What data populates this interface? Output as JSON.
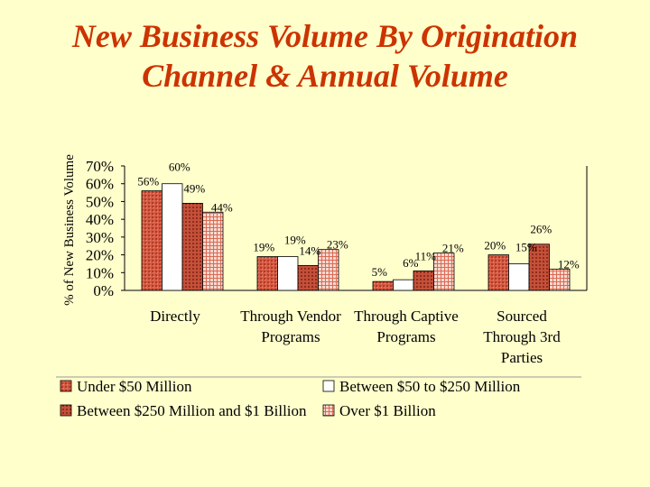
{
  "title": {
    "line1": "New Business Volume By Origination",
    "line2": "Channel & Annual Volume"
  },
  "chart_data": {
    "type": "bar",
    "title": "New Business Volume By Origination Channel & Annual Volume",
    "xlabel": "",
    "ylabel": "% of New Business Volume",
    "ylim": [
      0,
      70
    ],
    "yticks": [
      "0%",
      "10%",
      "20%",
      "30%",
      "40%",
      "50%",
      "60%",
      "70%"
    ],
    "categories": [
      [
        "Directly"
      ],
      [
        "Through Vendor",
        "Programs"
      ],
      [
        "Through Captive",
        "Programs"
      ],
      [
        "Sourced",
        "Through 3rd",
        "Parties"
      ]
    ],
    "series": [
      {
        "name": "Under $50 Million",
        "values": [
          56,
          19,
          5,
          20
        ],
        "labels": [
          "56%",
          "19%",
          "5%",
          "20%"
        ]
      },
      {
        "name": "Between $50 to $250 Million",
        "values": [
          60,
          19,
          6,
          15
        ],
        "labels": [
          "60%",
          "19%",
          "6%",
          "15%"
        ]
      },
      {
        "name": "Between $250 Million and $1 Billion",
        "values": [
          49,
          14,
          11,
          26
        ],
        "labels": [
          "49%",
          "14%",
          "11%",
          "26%"
        ]
      },
      {
        "name": "Over $1 Billion",
        "values": [
          44,
          23,
          21,
          12
        ],
        "labels": [
          "44%",
          "23%",
          "21%",
          "12%"
        ]
      }
    ],
    "legend_position": "bottom",
    "grid": false
  }
}
